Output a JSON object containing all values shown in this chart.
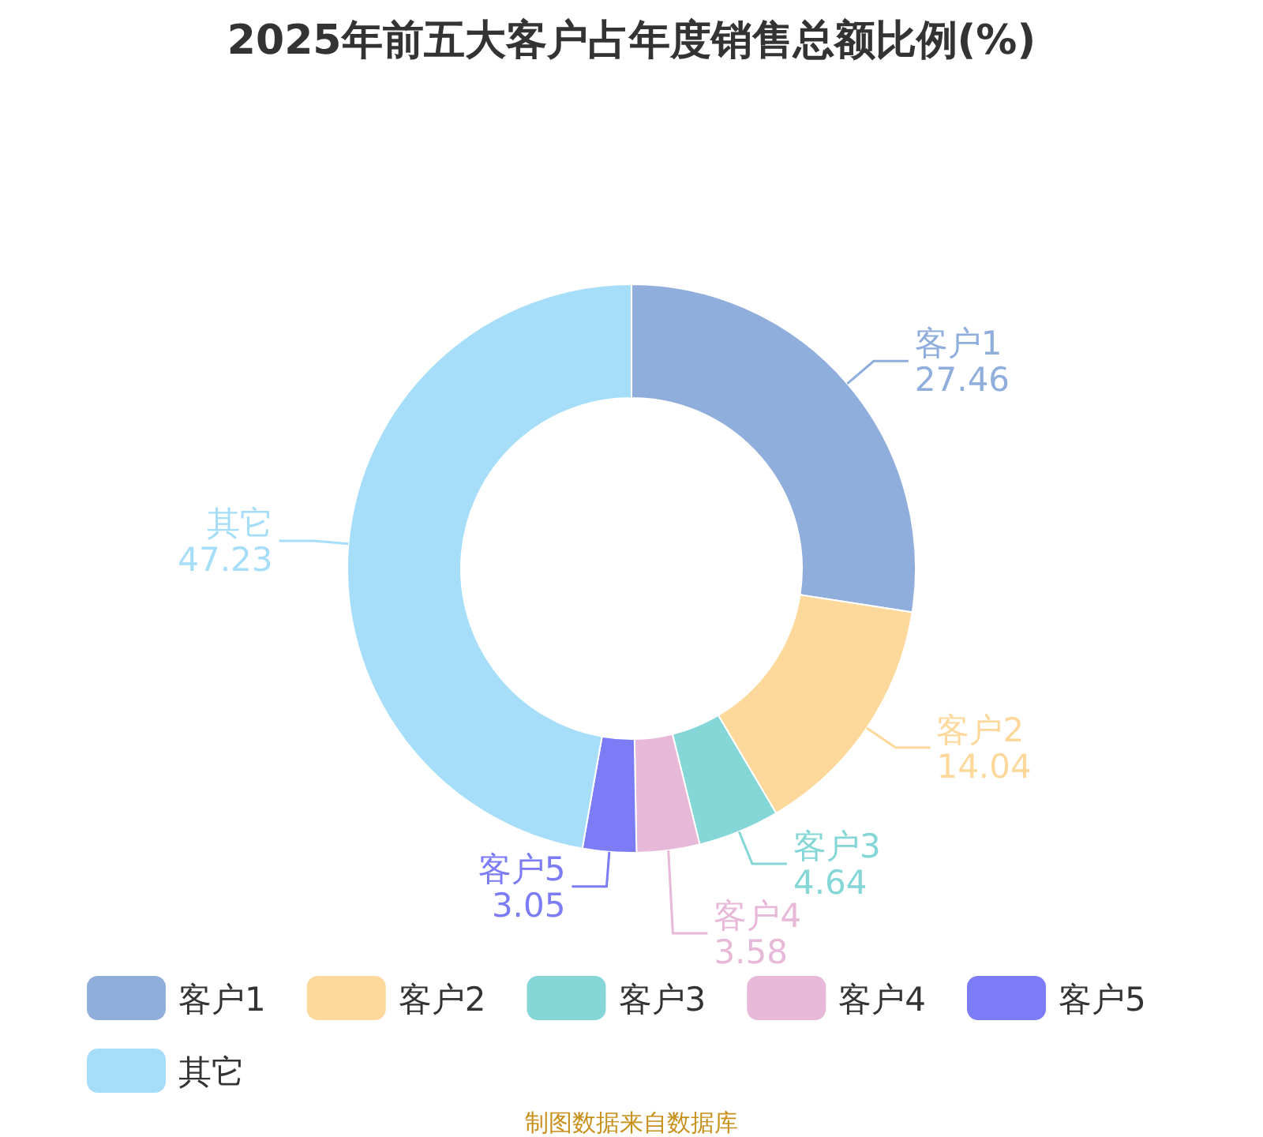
{
  "chart_data": {
    "type": "donut",
    "title": "2025年前五大客户占年度销售总额比例(%)",
    "categories": [
      "客户1",
      "客户2",
      "客户3",
      "客户4",
      "客户5",
      "其它"
    ],
    "values": [
      27.46,
      14.04,
      4.64,
      3.58,
      3.05,
      47.23
    ],
    "colors": [
      "#8faedb",
      "#fdd89b",
      "#85d6d7",
      "#e7b8d8",
      "#7b7cf6",
      "#a6def9"
    ],
    "data_labels": true,
    "legend": "bottom",
    "annotations": [
      "制图数据来自数据库"
    ]
  }
}
